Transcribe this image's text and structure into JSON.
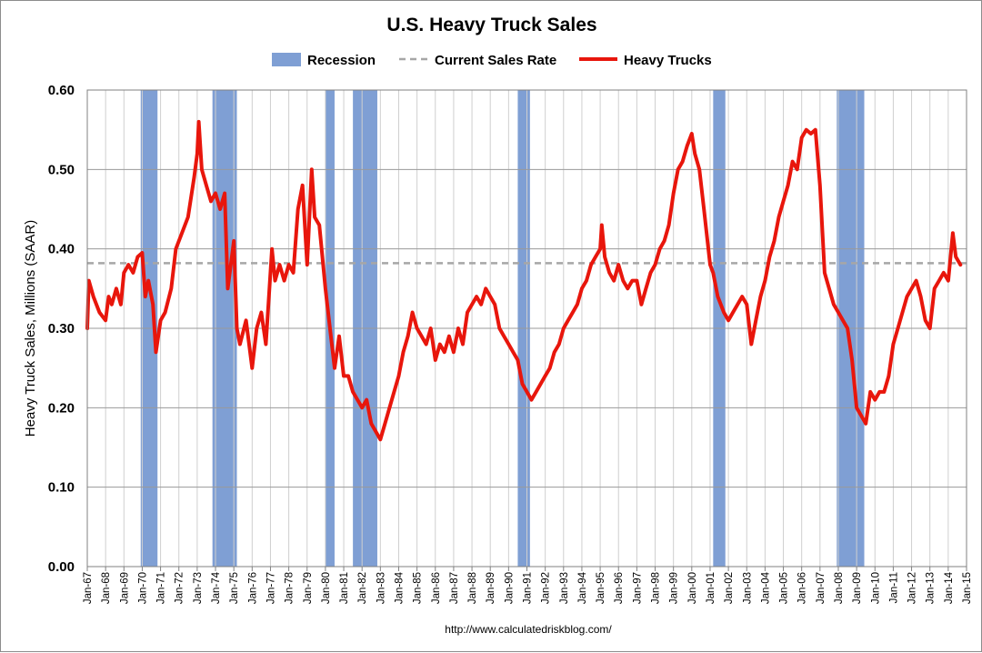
{
  "chart_data": {
    "type": "line",
    "title": "U.S. Heavy Truck Sales",
    "xlabel": "",
    "ylabel": "Heavy Truck Sales, Millions (SAAR)",
    "ylim": [
      0,
      0.6
    ],
    "yticks": [
      "0.00",
      "0.10",
      "0.20",
      "0.30",
      "0.40",
      "0.50",
      "0.60"
    ],
    "xticks": [
      "Jan-67",
      "Jan-68",
      "Jan-69",
      "Jan-70",
      "Jan-71",
      "Jan-72",
      "Jan-73",
      "Jan-74",
      "Jan-75",
      "Jan-76",
      "Jan-77",
      "Jan-78",
      "Jan-79",
      "Jan-80",
      "Jan-81",
      "Jan-82",
      "Jan-83",
      "Jan-84",
      "Jan-85",
      "Jan-86",
      "Jan-87",
      "Jan-88",
      "Jan-89",
      "Jan-90",
      "Jan-91",
      "Jan-92",
      "Jan-93",
      "Jan-94",
      "Jan-95",
      "Jan-96",
      "Jan-97",
      "Jan-98",
      "Jan-99",
      "Jan-00",
      "Jan-01",
      "Jan-02",
      "Jan-03",
      "Jan-04",
      "Jan-05",
      "Jan-06",
      "Jan-07",
      "Jan-08",
      "Jan-09",
      "Jan-10",
      "Jan-11",
      "Jan-12",
      "Jan-13",
      "Jan-14",
      "Jan-15"
    ],
    "grid": true,
    "legend_position": "top-center",
    "legend": [
      {
        "name": "Recession",
        "kind": "band",
        "color": "#7f9fd4"
      },
      {
        "name": "Current Sales Rate",
        "kind": "dashed",
        "color": "#a6a6a6"
      },
      {
        "name": "Heavy Trucks",
        "kind": "line",
        "color": "#e8160c"
      }
    ],
    "recessions": [
      {
        "start": "1969-12",
        "end": "1970-11"
      },
      {
        "start": "1973-11",
        "end": "1975-03"
      },
      {
        "start": "1980-01",
        "end": "1980-07"
      },
      {
        "start": "1981-07",
        "end": "1982-11"
      },
      {
        "start": "1990-07",
        "end": "1991-03"
      },
      {
        "start": "2001-03",
        "end": "2001-11"
      },
      {
        "start": "2007-12",
        "end": "2009-06"
      }
    ],
    "current_sales_rate": 0.382,
    "series": [
      {
        "name": "Heavy Trucks",
        "color": "#e8160c",
        "points": [
          [
            "1967-01",
            0.3
          ],
          [
            "1967-02",
            0.36
          ],
          [
            "1967-05",
            0.34
          ],
          [
            "1967-09",
            0.32
          ],
          [
            "1968-01",
            0.31
          ],
          [
            "1968-03",
            0.34
          ],
          [
            "1968-05",
            0.33
          ],
          [
            "1968-08",
            0.35
          ],
          [
            "1968-11",
            0.33
          ],
          [
            "1969-01",
            0.37
          ],
          [
            "1969-04",
            0.38
          ],
          [
            "1969-07",
            0.37
          ],
          [
            "1969-10",
            0.39
          ],
          [
            "1970-01",
            0.395
          ],
          [
            "1970-03",
            0.34
          ],
          [
            "1970-05",
            0.36
          ],
          [
            "1970-08",
            0.33
          ],
          [
            "1970-10",
            0.27
          ],
          [
            "1971-01",
            0.31
          ],
          [
            "1971-04",
            0.32
          ],
          [
            "1971-08",
            0.35
          ],
          [
            "1971-11",
            0.4
          ],
          [
            "1972-03",
            0.42
          ],
          [
            "1972-07",
            0.44
          ],
          [
            "1972-11",
            0.49
          ],
          [
            "1973-01",
            0.52
          ],
          [
            "1973-02",
            0.56
          ],
          [
            "1973-04",
            0.5
          ],
          [
            "1973-07",
            0.48
          ],
          [
            "1973-10",
            0.46
          ],
          [
            "1974-01",
            0.47
          ],
          [
            "1974-04",
            0.45
          ],
          [
            "1974-07",
            0.47
          ],
          [
            "1974-09",
            0.35
          ],
          [
            "1975-01",
            0.41
          ],
          [
            "1975-03",
            0.3
          ],
          [
            "1975-05",
            0.28
          ],
          [
            "1975-09",
            0.31
          ],
          [
            "1976-01",
            0.25
          ],
          [
            "1976-04",
            0.3
          ],
          [
            "1976-07",
            0.32
          ],
          [
            "1976-10",
            0.28
          ],
          [
            "1977-02",
            0.4
          ],
          [
            "1977-04",
            0.36
          ],
          [
            "1977-07",
            0.38
          ],
          [
            "1977-10",
            0.36
          ],
          [
            "1978-01",
            0.38
          ],
          [
            "1978-04",
            0.37
          ],
          [
            "1978-07",
            0.45
          ],
          [
            "1978-10",
            0.48
          ],
          [
            "1979-01",
            0.38
          ],
          [
            "1979-04",
            0.5
          ],
          [
            "1979-06",
            0.44
          ],
          [
            "1979-09",
            0.43
          ],
          [
            "1980-01",
            0.35
          ],
          [
            "1980-04",
            0.3
          ],
          [
            "1980-07",
            0.25
          ],
          [
            "1980-10",
            0.29
          ],
          [
            "1981-01",
            0.24
          ],
          [
            "1981-04",
            0.24
          ],
          [
            "1981-07",
            0.22
          ],
          [
            "1981-10",
            0.21
          ],
          [
            "1982-01",
            0.2
          ],
          [
            "1982-04",
            0.21
          ],
          [
            "1982-07",
            0.18
          ],
          [
            "1982-10",
            0.17
          ],
          [
            "1983-01",
            0.16
          ],
          [
            "1983-04",
            0.18
          ],
          [
            "1983-07",
            0.2
          ],
          [
            "1983-10",
            0.22
          ],
          [
            "1984-01",
            0.24
          ],
          [
            "1984-04",
            0.27
          ],
          [
            "1984-07",
            0.29
          ],
          [
            "1984-10",
            0.32
          ],
          [
            "1985-01",
            0.3
          ],
          [
            "1985-04",
            0.29
          ],
          [
            "1985-07",
            0.28
          ],
          [
            "1985-10",
            0.3
          ],
          [
            "1986-01",
            0.26
          ],
          [
            "1986-04",
            0.28
          ],
          [
            "1986-07",
            0.27
          ],
          [
            "1986-10",
            0.29
          ],
          [
            "1987-01",
            0.27
          ],
          [
            "1987-04",
            0.3
          ],
          [
            "1987-07",
            0.28
          ],
          [
            "1987-10",
            0.32
          ],
          [
            "1988-01",
            0.33
          ],
          [
            "1988-04",
            0.34
          ],
          [
            "1988-07",
            0.33
          ],
          [
            "1988-10",
            0.35
          ],
          [
            "1989-01",
            0.34
          ],
          [
            "1989-04",
            0.33
          ],
          [
            "1989-07",
            0.3
          ],
          [
            "1989-10",
            0.29
          ],
          [
            "1990-01",
            0.28
          ],
          [
            "1990-04",
            0.27
          ],
          [
            "1990-07",
            0.26
          ],
          [
            "1990-10",
            0.23
          ],
          [
            "1991-01",
            0.22
          ],
          [
            "1991-04",
            0.21
          ],
          [
            "1991-07",
            0.22
          ],
          [
            "1991-10",
            0.23
          ],
          [
            "1992-01",
            0.24
          ],
          [
            "1992-04",
            0.25
          ],
          [
            "1992-07",
            0.27
          ],
          [
            "1992-10",
            0.28
          ],
          [
            "1993-01",
            0.3
          ],
          [
            "1993-04",
            0.31
          ],
          [
            "1993-07",
            0.32
          ],
          [
            "1993-10",
            0.33
          ],
          [
            "1994-01",
            0.35
          ],
          [
            "1994-04",
            0.36
          ],
          [
            "1994-07",
            0.38
          ],
          [
            "1994-10",
            0.39
          ],
          [
            "1995-01",
            0.4
          ],
          [
            "1995-02",
            0.43
          ],
          [
            "1995-04",
            0.39
          ],
          [
            "1995-07",
            0.37
          ],
          [
            "1995-10",
            0.36
          ],
          [
            "1996-01",
            0.38
          ],
          [
            "1996-04",
            0.36
          ],
          [
            "1996-07",
            0.35
          ],
          [
            "1996-10",
            0.36
          ],
          [
            "1997-01",
            0.36
          ],
          [
            "1997-04",
            0.33
          ],
          [
            "1997-07",
            0.35
          ],
          [
            "1997-10",
            0.37
          ],
          [
            "1998-01",
            0.38
          ],
          [
            "1998-04",
            0.4
          ],
          [
            "1998-07",
            0.41
          ],
          [
            "1998-10",
            0.43
          ],
          [
            "1999-01",
            0.47
          ],
          [
            "1999-04",
            0.5
          ],
          [
            "1999-07",
            0.51
          ],
          [
            "1999-10",
            0.53
          ],
          [
            "2000-01",
            0.545
          ],
          [
            "2000-03",
            0.52
          ],
          [
            "2000-06",
            0.5
          ],
          [
            "2000-09",
            0.45
          ],
          [
            "2001-01",
            0.38
          ],
          [
            "2001-03",
            0.37
          ],
          [
            "2001-06",
            0.34
          ],
          [
            "2001-10",
            0.32
          ],
          [
            "2002-01",
            0.31
          ],
          [
            "2002-04",
            0.32
          ],
          [
            "2002-07",
            0.33
          ],
          [
            "2002-10",
            0.34
          ],
          [
            "2003-01",
            0.33
          ],
          [
            "2003-04",
            0.28
          ],
          [
            "2003-07",
            0.31
          ],
          [
            "2003-10",
            0.34
          ],
          [
            "2004-01",
            0.36
          ],
          [
            "2004-04",
            0.39
          ],
          [
            "2004-07",
            0.41
          ],
          [
            "2004-10",
            0.44
          ],
          [
            "2005-01",
            0.46
          ],
          [
            "2005-04",
            0.48
          ],
          [
            "2005-07",
            0.51
          ],
          [
            "2005-10",
            0.5
          ],
          [
            "2006-01",
            0.54
          ],
          [
            "2006-04",
            0.55
          ],
          [
            "2006-07",
            0.545
          ],
          [
            "2006-10",
            0.55
          ],
          [
            "2007-01",
            0.48
          ],
          [
            "2007-04",
            0.37
          ],
          [
            "2007-07",
            0.35
          ],
          [
            "2007-10",
            0.33
          ],
          [
            "2008-01",
            0.32
          ],
          [
            "2008-04",
            0.31
          ],
          [
            "2008-07",
            0.3
          ],
          [
            "2008-10",
            0.26
          ],
          [
            "2009-01",
            0.2
          ],
          [
            "2009-04",
            0.19
          ],
          [
            "2009-07",
            0.18
          ],
          [
            "2009-10",
            0.22
          ],
          [
            "2010-01",
            0.21
          ],
          [
            "2010-04",
            0.22
          ],
          [
            "2010-07",
            0.22
          ],
          [
            "2010-10",
            0.24
          ],
          [
            "2011-01",
            0.28
          ],
          [
            "2011-04",
            0.3
          ],
          [
            "2011-07",
            0.32
          ],
          [
            "2011-10",
            0.34
          ],
          [
            "2012-01",
            0.35
          ],
          [
            "2012-04",
            0.36
          ],
          [
            "2012-07",
            0.34
          ],
          [
            "2012-10",
            0.31
          ],
          [
            "2013-01",
            0.3
          ],
          [
            "2013-04",
            0.35
          ],
          [
            "2013-07",
            0.36
          ],
          [
            "2013-10",
            0.37
          ],
          [
            "2014-01",
            0.36
          ],
          [
            "2014-04",
            0.42
          ],
          [
            "2014-06",
            0.39
          ],
          [
            "2014-09",
            0.38
          ]
        ]
      }
    ],
    "source": "http://www.calculatedriskblog.com/"
  }
}
